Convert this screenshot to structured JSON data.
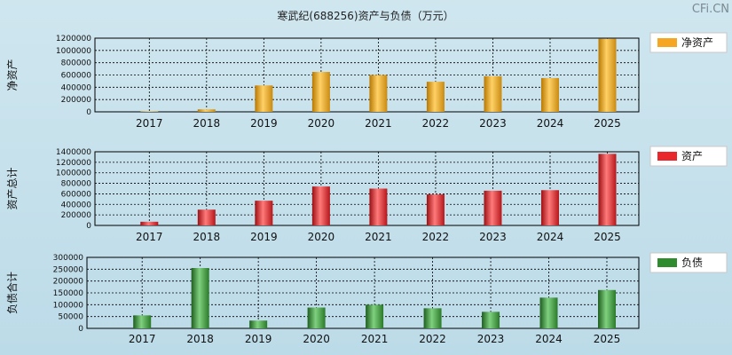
{
  "title": "寒武纪(688256)资产与负债（万元）",
  "watermark": "CFi.CN",
  "chart_data": [
    {
      "type": "bar",
      "ylabel": "净资产",
      "legend": "净资产",
      "color": "#f5a623",
      "categories": [
        "2017",
        "2018",
        "2019",
        "2020",
        "2021",
        "2022",
        "2023",
        "2024",
        "2025"
      ],
      "values": [
        8000,
        40000,
        430000,
        650000,
        600000,
        490000,
        580000,
        550000,
        1190000
      ],
      "ylim": [
        0,
        1200000
      ],
      "yticks": [
        0,
        200000,
        400000,
        600000,
        800000,
        1000000,
        1200000
      ],
      "ytick_labels": [
        "0",
        "200000",
        "400000",
        "600000",
        "800000",
        "1000000",
        "1200000"
      ]
    },
    {
      "type": "bar",
      "ylabel": "资产总计",
      "legend": "资产",
      "color": "#e8262b",
      "categories": [
        "2017",
        "2018",
        "2019",
        "2020",
        "2021",
        "2022",
        "2023",
        "2024",
        "2025"
      ],
      "values": [
        70000,
        300000,
        470000,
        740000,
        700000,
        590000,
        660000,
        670000,
        1360000
      ],
      "ylim": [
        0,
        1400000
      ],
      "yticks": [
        0,
        200000,
        400000,
        600000,
        800000,
        1000000,
        1200000,
        1400000
      ],
      "ytick_labels": [
        "0",
        "200000",
        "400000",
        "600000",
        "800000",
        "1000000",
        "1200000",
        "1400000"
      ]
    },
    {
      "type": "bar",
      "ylabel": "负债合计",
      "legend": "负债",
      "color": "#2e8b2e",
      "categories": [
        "2017",
        "2018",
        "2019",
        "2020",
        "2021",
        "2022",
        "2023",
        "2024",
        "2025"
      ],
      "values": [
        55000,
        255000,
        33000,
        88000,
        100000,
        85000,
        70000,
        130000,
        162000
      ],
      "ylim": [
        0,
        300000
      ],
      "yticks": [
        0,
        50000,
        100000,
        150000,
        200000,
        250000,
        300000
      ],
      "ytick_labels": [
        "0",
        "50000",
        "100000",
        "150000",
        "200000",
        "250000",
        "300000"
      ]
    }
  ]
}
